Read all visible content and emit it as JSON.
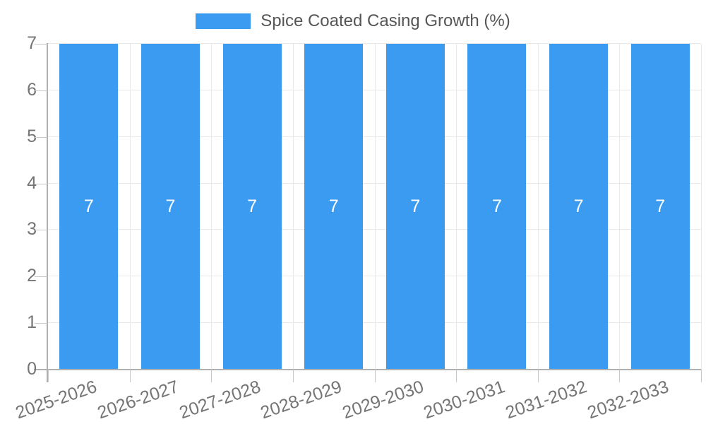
{
  "legend": {
    "label": "Spice Coated Casing Growth (%)"
  },
  "chart_data": {
    "type": "bar",
    "title": "Spice Coated Casing Growth (%)",
    "categories": [
      "2025-2026",
      "2026-2027",
      "2027-2028",
      "2028-2029",
      "2029-2030",
      "2030-2031",
      "2031-2032",
      "2032-2033"
    ],
    "series": [
      {
        "name": "Spice Coated Casing Growth (%)",
        "values": [
          7,
          7,
          7,
          7,
          7,
          7,
          7,
          7
        ]
      }
    ],
    "bar_value_labels": [
      "7",
      "7",
      "7",
      "7",
      "7",
      "7",
      "7",
      "7"
    ],
    "xlabel": "",
    "ylabel": "",
    "ylim": [
      0,
      7
    ],
    "y_ticks": [
      0,
      1,
      2,
      3,
      4,
      5,
      6,
      7
    ],
    "grid": true,
    "legend_position": "top-center",
    "x_label_rotation_deg": -19
  },
  "colors": {
    "bar": "#3b9bf0",
    "bar_value_label": "#ffffff",
    "axis_line": "#b0b0b0",
    "gridline": "#e9e9e9",
    "tick": "#c9c9c9",
    "tick_label": "#757575",
    "legend_text": "#565656",
    "background": "#ffffff"
  }
}
